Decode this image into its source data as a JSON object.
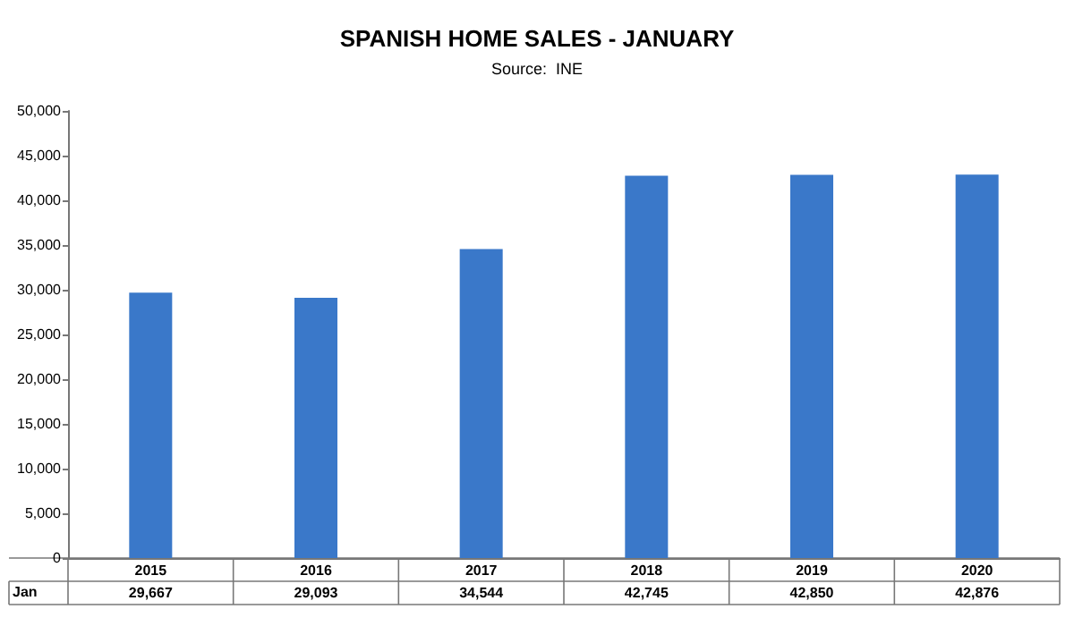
{
  "chart_data": {
    "type": "bar",
    "title": "SPANISH HOME SALES - JANUARY",
    "subtitle": "Source:  INE",
    "categories": [
      "2015",
      "2016",
      "2017",
      "2018",
      "2019",
      "2020"
    ],
    "series": [
      {
        "name": "Jan",
        "color": "#3a78c9",
        "values": [
          29667,
          29093,
          34544,
          42745,
          42850,
          42876
        ],
        "value_labels": [
          "29,667",
          "29,093",
          "34,544",
          "42,745",
          "42,850",
          "42,876"
        ]
      }
    ],
    "ylim": [
      0,
      50000
    ],
    "yticks": [
      0,
      {
        "value": 5000,
        "label": "5,000"
      },
      {
        "value": 10000,
        "label": "10,000"
      },
      {
        "value": 15000,
        "label": "15,000"
      },
      {
        "value": 20000,
        "label": "20,000"
      },
      {
        "value": 25000,
        "label": "25,000"
      },
      {
        "value": 30000,
        "label": "30,000"
      },
      {
        "value": 35000,
        "label": "35,000"
      },
      {
        "value": 40000,
        "label": "40,000"
      },
      {
        "value": 45000,
        "label": "45,000"
      },
      {
        "value": 50000,
        "label": "50,000"
      }
    ],
    "grid": false,
    "legend": false
  }
}
